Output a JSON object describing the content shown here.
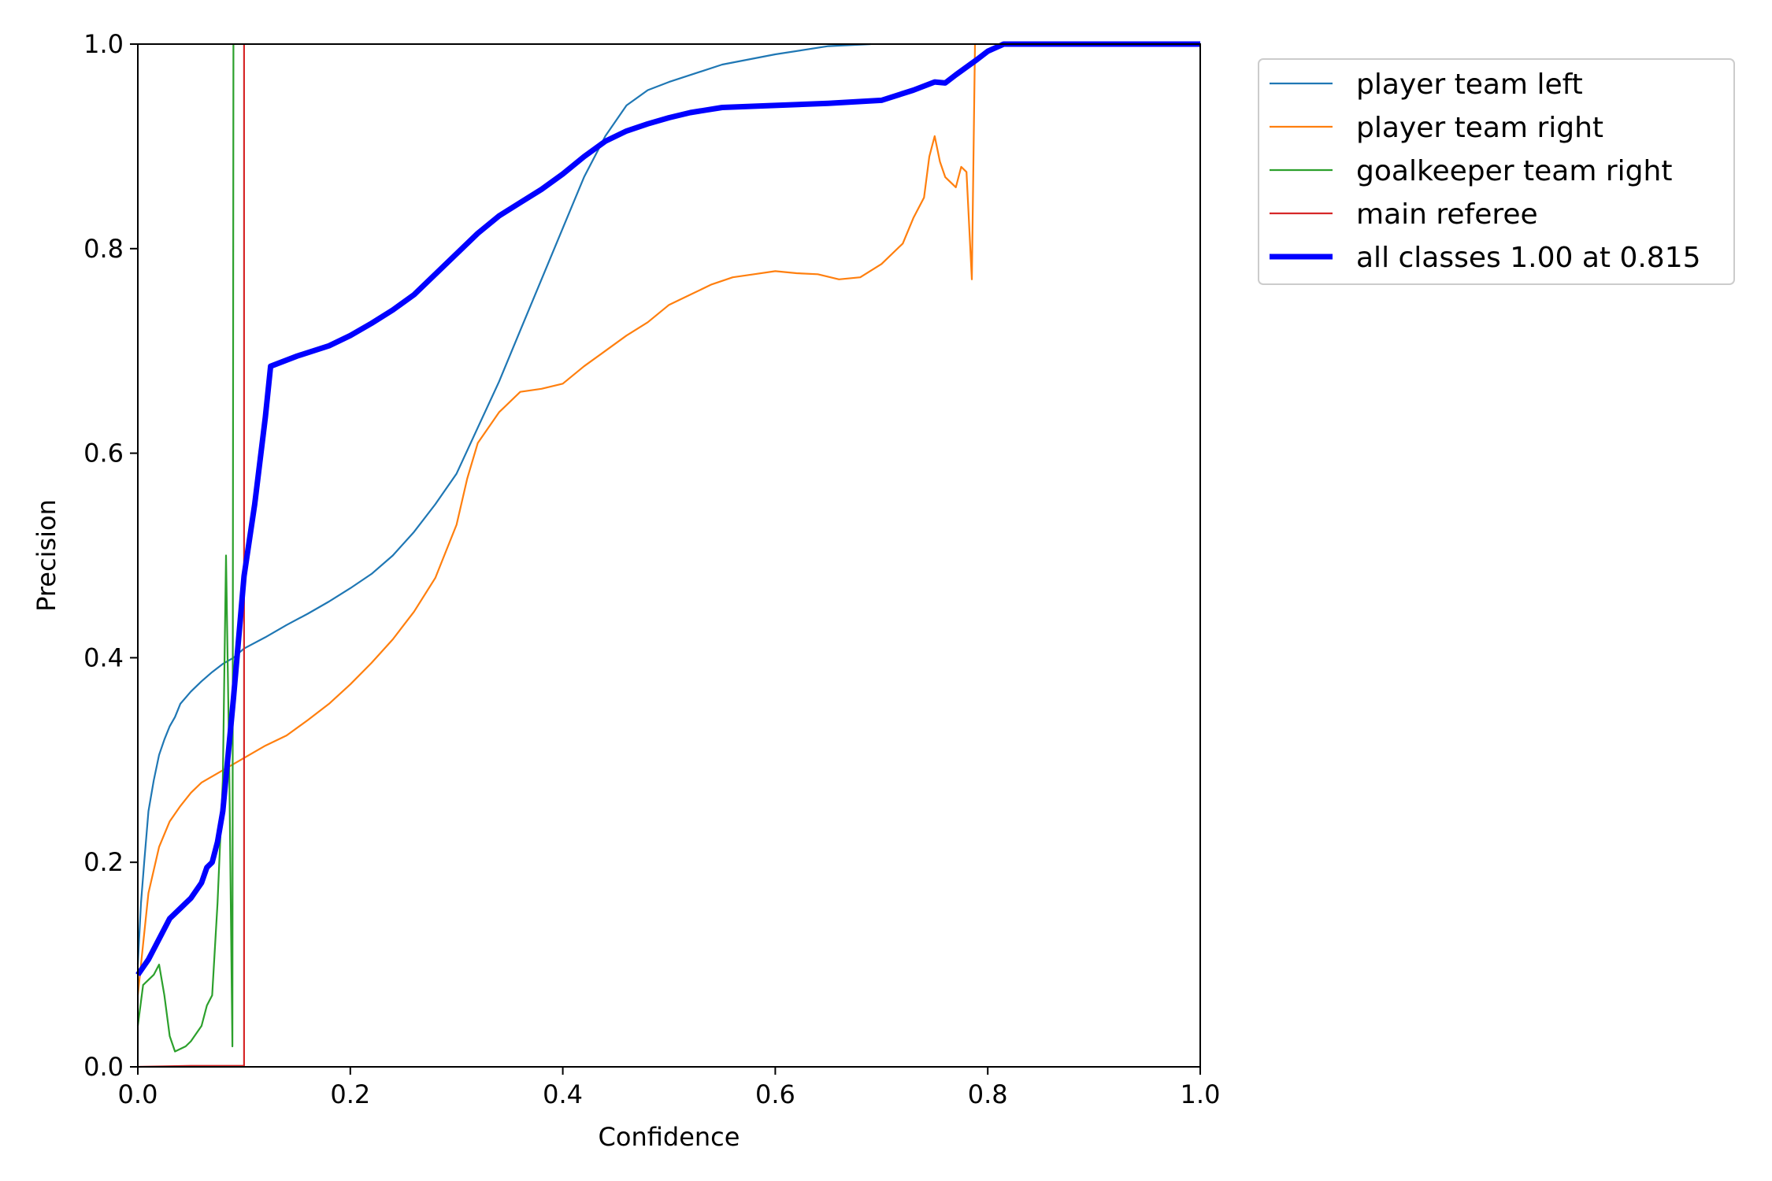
{
  "chart_data": {
    "type": "line",
    "xlabel": "Confidence",
    "ylabel": "Precision",
    "xlim": [
      0.0,
      1.0
    ],
    "ylim": [
      0.0,
      1.0
    ],
    "x_ticks": [
      "0.0",
      "0.2",
      "0.4",
      "0.6",
      "0.8",
      "1.0"
    ],
    "y_ticks": [
      "0.0",
      "0.2",
      "0.4",
      "0.6",
      "0.8",
      "1.0"
    ],
    "grid": false,
    "legend_position": "outside top-right",
    "series": [
      {
        "name": "player team left",
        "color": "#1f77b4",
        "width": "thin",
        "points": [
          [
            0.0,
            0.1
          ],
          [
            0.003,
            0.16
          ],
          [
            0.006,
            0.2
          ],
          [
            0.01,
            0.25
          ],
          [
            0.015,
            0.28
          ],
          [
            0.02,
            0.305
          ],
          [
            0.025,
            0.32
          ],
          [
            0.03,
            0.333
          ],
          [
            0.035,
            0.342
          ],
          [
            0.04,
            0.355
          ],
          [
            0.05,
            0.367
          ],
          [
            0.06,
            0.377
          ],
          [
            0.07,
            0.386
          ],
          [
            0.08,
            0.394
          ],
          [
            0.09,
            0.4
          ],
          [
            0.1,
            0.409
          ],
          [
            0.12,
            0.42
          ],
          [
            0.14,
            0.432
          ],
          [
            0.16,
            0.443
          ],
          [
            0.18,
            0.455
          ],
          [
            0.2,
            0.468
          ],
          [
            0.22,
            0.482
          ],
          [
            0.24,
            0.5
          ],
          [
            0.26,
            0.523
          ],
          [
            0.28,
            0.55
          ],
          [
            0.3,
            0.58
          ],
          [
            0.32,
            0.625
          ],
          [
            0.34,
            0.67
          ],
          [
            0.36,
            0.72
          ],
          [
            0.38,
            0.77
          ],
          [
            0.4,
            0.82
          ],
          [
            0.42,
            0.87
          ],
          [
            0.44,
            0.91
          ],
          [
            0.46,
            0.94
          ],
          [
            0.48,
            0.955
          ],
          [
            0.5,
            0.963
          ],
          [
            0.55,
            0.98
          ],
          [
            0.6,
            0.99
          ],
          [
            0.65,
            0.998
          ],
          [
            0.69,
            1.0
          ]
        ]
      },
      {
        "name": "player team right",
        "color": "#ff7f0e",
        "width": "thin",
        "points": [
          [
            0.0,
            0.07
          ],
          [
            0.005,
            0.12
          ],
          [
            0.01,
            0.17
          ],
          [
            0.02,
            0.215
          ],
          [
            0.03,
            0.24
          ],
          [
            0.04,
            0.255
          ],
          [
            0.05,
            0.268
          ],
          [
            0.06,
            0.278
          ],
          [
            0.08,
            0.29
          ],
          [
            0.1,
            0.302
          ],
          [
            0.12,
            0.314
          ],
          [
            0.14,
            0.324
          ],
          [
            0.16,
            0.339
          ],
          [
            0.18,
            0.355
          ],
          [
            0.2,
            0.374
          ],
          [
            0.22,
            0.395
          ],
          [
            0.24,
            0.418
          ],
          [
            0.26,
            0.445
          ],
          [
            0.28,
            0.478
          ],
          [
            0.3,
            0.53
          ],
          [
            0.31,
            0.575
          ],
          [
            0.32,
            0.61
          ],
          [
            0.34,
            0.64
          ],
          [
            0.36,
            0.66
          ],
          [
            0.38,
            0.663
          ],
          [
            0.4,
            0.668
          ],
          [
            0.42,
            0.685
          ],
          [
            0.44,
            0.7
          ],
          [
            0.46,
            0.715
          ],
          [
            0.48,
            0.728
          ],
          [
            0.5,
            0.745
          ],
          [
            0.52,
            0.755
          ],
          [
            0.54,
            0.765
          ],
          [
            0.56,
            0.772
          ],
          [
            0.58,
            0.775
          ],
          [
            0.6,
            0.778
          ],
          [
            0.62,
            0.776
          ],
          [
            0.64,
            0.775
          ],
          [
            0.66,
            0.77
          ],
          [
            0.68,
            0.772
          ],
          [
            0.7,
            0.785
          ],
          [
            0.72,
            0.805
          ],
          [
            0.73,
            0.83
          ],
          [
            0.74,
            0.85
          ],
          [
            0.745,
            0.89
          ],
          [
            0.75,
            0.91
          ],
          [
            0.755,
            0.885
          ],
          [
            0.76,
            0.87
          ],
          [
            0.77,
            0.86
          ],
          [
            0.775,
            0.88
          ],
          [
            0.78,
            0.875
          ],
          [
            0.785,
            0.77
          ],
          [
            0.788,
            1.0
          ]
        ]
      },
      {
        "name": "goalkeeper team right",
        "color": "#2ca02c",
        "width": "thin",
        "points": [
          [
            0.0,
            0.04
          ],
          [
            0.005,
            0.08
          ],
          [
            0.015,
            0.09
          ],
          [
            0.02,
            0.1
          ],
          [
            0.025,
            0.07
          ],
          [
            0.03,
            0.03
          ],
          [
            0.035,
            0.015
          ],
          [
            0.045,
            0.02
          ],
          [
            0.05,
            0.025
          ],
          [
            0.06,
            0.04
          ],
          [
            0.065,
            0.06
          ],
          [
            0.07,
            0.07
          ],
          [
            0.075,
            0.16
          ],
          [
            0.08,
            0.28
          ],
          [
            0.083,
            0.5
          ],
          [
            0.086,
            0.3
          ],
          [
            0.089,
            0.02
          ],
          [
            0.09,
            1.0
          ]
        ]
      },
      {
        "name": "main referee",
        "color": "#d62728",
        "width": "thin",
        "points": [
          [
            0.0,
            0.0
          ],
          [
            0.05,
            0.001
          ],
          [
            0.1,
            0.001
          ],
          [
            0.1,
            1.0
          ]
        ]
      },
      {
        "name": "all classes 1.00 at 0.815",
        "color": "#0000ff",
        "width": "thick",
        "points": [
          [
            0.0,
            0.09
          ],
          [
            0.01,
            0.105
          ],
          [
            0.02,
            0.125
          ],
          [
            0.03,
            0.145
          ],
          [
            0.04,
            0.155
          ],
          [
            0.05,
            0.165
          ],
          [
            0.06,
            0.18
          ],
          [
            0.065,
            0.195
          ],
          [
            0.07,
            0.2
          ],
          [
            0.075,
            0.22
          ],
          [
            0.08,
            0.25
          ],
          [
            0.09,
            0.36
          ],
          [
            0.1,
            0.48
          ],
          [
            0.11,
            0.55
          ],
          [
            0.12,
            0.635
          ],
          [
            0.125,
            0.685
          ],
          [
            0.15,
            0.695
          ],
          [
            0.18,
            0.705
          ],
          [
            0.2,
            0.715
          ],
          [
            0.22,
            0.727
          ],
          [
            0.24,
            0.74
          ],
          [
            0.26,
            0.755
          ],
          [
            0.28,
            0.775
          ],
          [
            0.3,
            0.795
          ],
          [
            0.32,
            0.815
          ],
          [
            0.34,
            0.832
          ],
          [
            0.36,
            0.845
          ],
          [
            0.38,
            0.858
          ],
          [
            0.4,
            0.873
          ],
          [
            0.42,
            0.89
          ],
          [
            0.44,
            0.905
          ],
          [
            0.46,
            0.915
          ],
          [
            0.48,
            0.922
          ],
          [
            0.5,
            0.928
          ],
          [
            0.52,
            0.933
          ],
          [
            0.55,
            0.938
          ],
          [
            0.6,
            0.94
          ],
          [
            0.65,
            0.942
          ],
          [
            0.7,
            0.945
          ],
          [
            0.73,
            0.955
          ],
          [
            0.75,
            0.963
          ],
          [
            0.76,
            0.962
          ],
          [
            0.77,
            0.97
          ],
          [
            0.79,
            0.985
          ],
          [
            0.8,
            0.993
          ],
          [
            0.815,
            1.0
          ],
          [
            0.9,
            1.0
          ],
          [
            1.0,
            1.0
          ]
        ]
      }
    ]
  }
}
